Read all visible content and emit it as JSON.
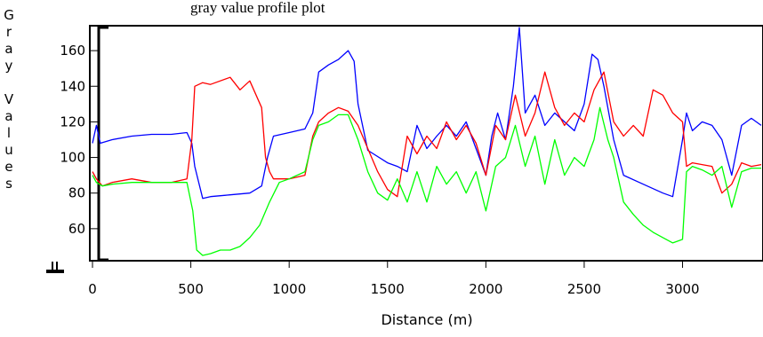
{
  "caption": "gray value profile plot",
  "chart_data": {
    "type": "line",
    "title": "",
    "xlabel": "Distance (m)",
    "ylabel": "Gray Values",
    "xlim": [
      0,
      3400
    ],
    "ylim": [
      43,
      173
    ],
    "xticks": [
      0,
      500,
      1000,
      1500,
      2000,
      2500,
      3000
    ],
    "yticks": [
      60,
      80,
      100,
      120,
      140,
      160
    ],
    "grid": false,
    "legend": "none",
    "series": [
      {
        "color": "#0000ff",
        "x": [
          0,
          20,
          40,
          100,
          200,
          300,
          400,
          480,
          505,
          520,
          560,
          600,
          700,
          800,
          860,
          890,
          920,
          1000,
          1080,
          1120,
          1150,
          1200,
          1250,
          1300,
          1330,
          1350,
          1400,
          1500,
          1550,
          1600,
          1650,
          1700,
          1750,
          1800,
          1850,
          1900,
          1950,
          2000,
          2030,
          2060,
          2100,
          2140,
          2170,
          2200,
          2250,
          2300,
          2350,
          2400,
          2450,
          2500,
          2540,
          2570,
          2600,
          2650,
          2700,
          2800,
          2900,
          2950,
          3000,
          3020,
          3050,
          3100,
          3150,
          3200,
          3250,
          3300,
          3350,
          3400
        ],
        "values": [
          108,
          118,
          108,
          110,
          112,
          113,
          113,
          114,
          108,
          95,
          77,
          78,
          79,
          80,
          84,
          100,
          112,
          114,
          116,
          125,
          148,
          152,
          155,
          160,
          154,
          130,
          104,
          97,
          95,
          92,
          118,
          105,
          112,
          118,
          112,
          120,
          105,
          90,
          112,
          125,
          110,
          140,
          173,
          125,
          135,
          118,
          125,
          120,
          115,
          130,
          158,
          155,
          140,
          110,
          90,
          85,
          80,
          78,
          110,
          125,
          115,
          120,
          118,
          110,
          90,
          118,
          122,
          118
        ]
      },
      {
        "color": "#ff0000",
        "x": [
          0,
          20,
          50,
          100,
          200,
          300,
          400,
          480,
          505,
          520,
          560,
          600,
          700,
          750,
          800,
          860,
          880,
          900,
          920,
          1000,
          1080,
          1120,
          1150,
          1200,
          1250,
          1300,
          1350,
          1400,
          1450,
          1500,
          1550,
          1600,
          1650,
          1700,
          1750,
          1800,
          1850,
          1900,
          1950,
          2000,
          2050,
          2100,
          2150,
          2200,
          2250,
          2300,
          2350,
          2400,
          2450,
          2500,
          2550,
          2600,
          2650,
          2700,
          2750,
          2800,
          2850,
          2900,
          2950,
          3000,
          3020,
          3050,
          3100,
          3150,
          3200,
          3250,
          3300,
          3350,
          3400
        ],
        "values": [
          92,
          88,
          84,
          86,
          88,
          86,
          86,
          88,
          110,
          140,
          142,
          141,
          145,
          138,
          143,
          128,
          100,
          92,
          88,
          88,
          90,
          112,
          120,
          125,
          128,
          126,
          118,
          105,
          92,
          82,
          78,
          112,
          102,
          112,
          105,
          120,
          110,
          118,
          108,
          90,
          118,
          110,
          135,
          112,
          125,
          148,
          128,
          118,
          125,
          120,
          138,
          148,
          120,
          112,
          118,
          112,
          138,
          135,
          125,
          120,
          95,
          97,
          96,
          95,
          80,
          85,
          97,
          95,
          96
        ]
      },
      {
        "color": "#00ff00",
        "x": [
          0,
          20,
          50,
          100,
          200,
          300,
          400,
          480,
          510,
          530,
          560,
          600,
          650,
          700,
          750,
          800,
          850,
          900,
          950,
          1000,
          1080,
          1120,
          1150,
          1200,
          1250,
          1300,
          1350,
          1400,
          1450,
          1500,
          1550,
          1600,
          1650,
          1700,
          1750,
          1800,
          1850,
          1900,
          1950,
          2000,
          2050,
          2100,
          2150,
          2200,
          2250,
          2300,
          2350,
          2400,
          2450,
          2500,
          2550,
          2580,
          2620,
          2650,
          2700,
          2750,
          2800,
          2850,
          2900,
          2950,
          3000,
          3020,
          3050,
          3100,
          3150,
          3200,
          3250,
          3300,
          3350,
          3400
        ],
        "values": [
          90,
          86,
          84,
          85,
          86,
          86,
          86,
          86,
          70,
          48,
          45,
          46,
          48,
          48,
          50,
          55,
          62,
          75,
          86,
          88,
          92,
          110,
          118,
          120,
          124,
          124,
          110,
          92,
          80,
          76,
          88,
          75,
          92,
          75,
          95,
          85,
          92,
          80,
          92,
          70,
          95,
          100,
          118,
          95,
          112,
          85,
          110,
          90,
          100,
          95,
          110,
          128,
          110,
          100,
          75,
          68,
          62,
          58,
          55,
          52,
          54,
          92,
          95,
          93,
          90,
          95,
          72,
          92,
          94,
          94
        ]
      }
    ]
  }
}
